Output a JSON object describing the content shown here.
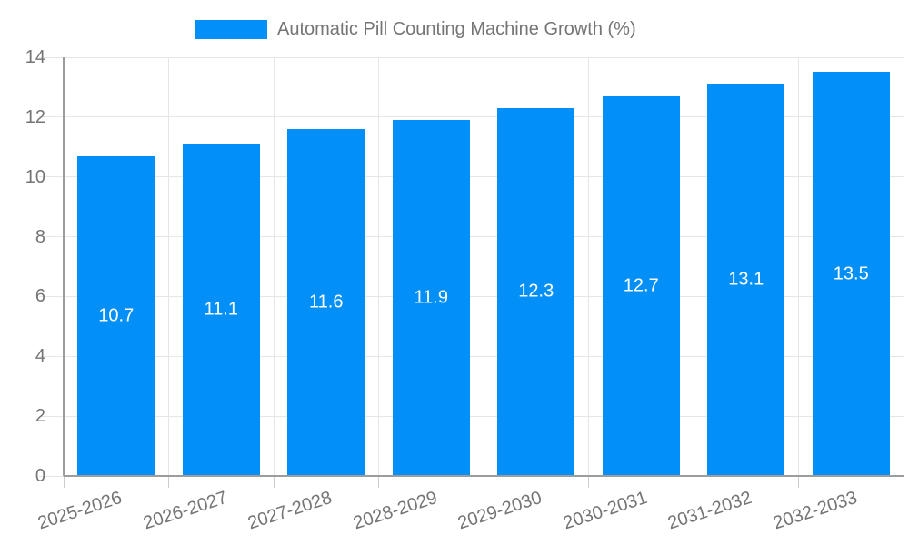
{
  "chart_data": {
    "type": "bar",
    "title": "Automatic Pill Counting Machine Growth (%)",
    "legend": [
      {
        "label": "Automatic Pill Counting Machine Growth (%)",
        "color": "#0290f8"
      }
    ],
    "legend_position": "top-center",
    "categories": [
      "2025-2026",
      "2026-2027",
      "2027-2028",
      "2028-2029",
      "2029-2030",
      "2030-2031",
      "2031-2032",
      "2032-2033"
    ],
    "values": [
      10.7,
      11.1,
      11.6,
      11.9,
      12.3,
      12.7,
      13.1,
      13.5
    ],
    "value_labels": [
      "10.7",
      "11.1",
      "11.6",
      "11.9",
      "12.3",
      "12.7",
      "13.1",
      "13.5"
    ],
    "xlabel": "",
    "ylabel": "",
    "ylim": [
      0,
      14
    ],
    "yticks": [
      0,
      2,
      4,
      6,
      8,
      10,
      12,
      14
    ],
    "grid": true,
    "x_label_rotation_deg": -18,
    "colors": {
      "bar": "#0290f8",
      "bar_value_text": "#ffffff",
      "axis_line": "#9c9c9c",
      "grid_line": "#e6e6e6",
      "tick_line": "#cccccc",
      "tick_text": "#757575",
      "legend_text": "#757575",
      "background": "#ffffff"
    }
  }
}
